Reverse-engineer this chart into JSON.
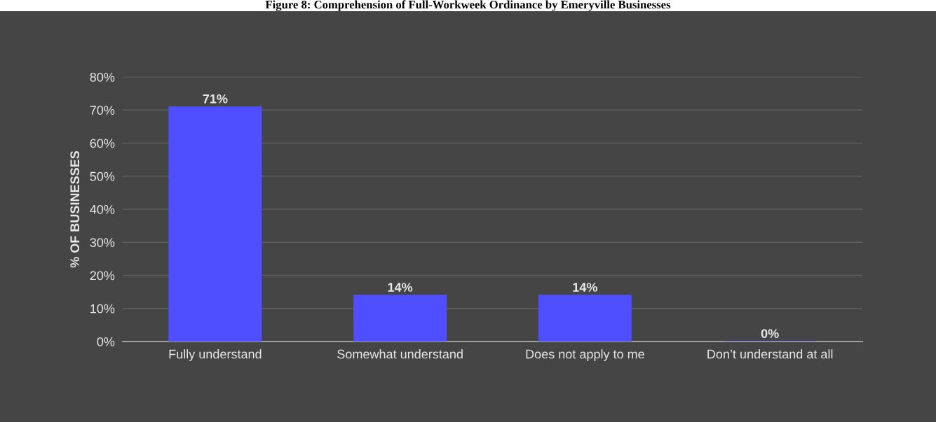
{
  "chart_data": {
    "type": "bar",
    "title": "Figure 8: Comprehension of Full-Workweek Ordinance by Emeryville Businesses",
    "ylabel": "% OF BUSINESSES",
    "categories": [
      "Fully understand",
      "Somewhat understand",
      "Does not apply to me",
      "Don’t understand at all"
    ],
    "values": [
      71,
      14,
      14,
      0
    ],
    "value_labels": [
      "71%",
      "14%",
      "14%",
      "0%"
    ],
    "color": "#4f4fff",
    "ylim": [
      0,
      80
    ],
    "yticks": [
      {
        "value": 0,
        "label": "0%"
      },
      {
        "value": 10,
        "label": "10%"
      },
      {
        "value": 20,
        "label": "20%"
      },
      {
        "value": 30,
        "label": "30%"
      },
      {
        "value": 40,
        "label": "40%"
      },
      {
        "value": 50,
        "label": "50%"
      },
      {
        "value": 60,
        "label": "60%"
      },
      {
        "value": 70,
        "label": "70%"
      },
      {
        "value": 80,
        "label": "80%"
      }
    ],
    "grid": "y"
  }
}
